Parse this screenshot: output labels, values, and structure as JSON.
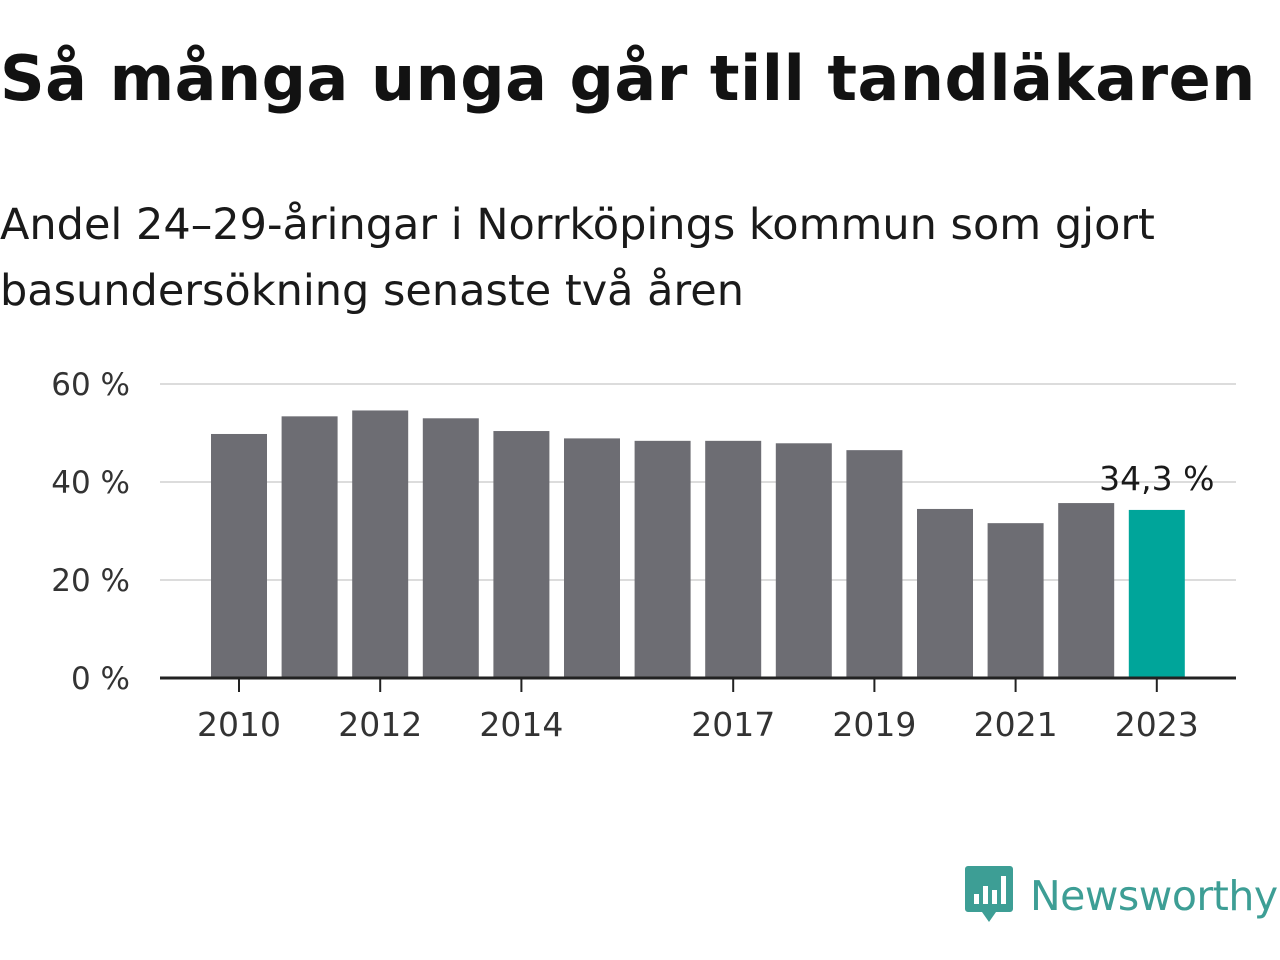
{
  "header": {
    "title": "Så många unga går till tandläkaren",
    "subtitle": "Andel 24–29-åringar i Norrköpings kommun som gjort basundersökning senaste två åren"
  },
  "colors": {
    "bar": "#6d6d73",
    "highlight": "#00a59a",
    "grid": "#dcdcdc",
    "axis": "#222222",
    "brand": "#3d9e95"
  },
  "chart_data": {
    "type": "bar",
    "categories": [
      "2010",
      "2011",
      "2012",
      "2013",
      "2014",
      "2015",
      "2016",
      "2017",
      "2018",
      "2019",
      "2020",
      "2021",
      "2022",
      "2023"
    ],
    "values": [
      49.8,
      53.4,
      54.6,
      53.0,
      50.4,
      48.9,
      48.4,
      48.4,
      47.9,
      46.5,
      34.5,
      31.6,
      35.7,
      34.3
    ],
    "x_tick_labels": [
      "2010",
      "2012",
      "2014",
      "2017",
      "2019",
      "2021",
      "2023"
    ],
    "y_ticks": [
      0,
      20,
      40,
      60
    ],
    "y_tick_labels": [
      "0 %",
      "20 %",
      "40 %",
      "60 %"
    ],
    "ylim": [
      0,
      60
    ],
    "grid": true,
    "highlight_category": "2023",
    "annotation": "34,3 %",
    "xlabel": "",
    "ylabel": ""
  },
  "logo": {
    "text": "Newsworthy",
    "icon": "newsworthy-logo-icon"
  }
}
